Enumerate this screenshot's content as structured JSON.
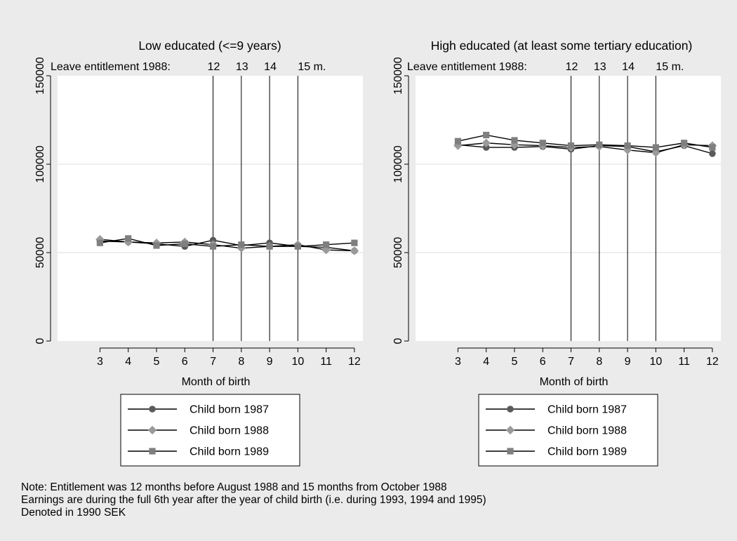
{
  "chart_data": [
    {
      "type": "line",
      "title": "Low educated (<=9 years)",
      "subtitle": "Leave entitlement 1988:",
      "vline_labels": [
        "12",
        "13",
        "14",
        "15 m."
      ],
      "vlines_x": [
        7,
        8,
        9,
        10
      ],
      "xlabel": "Month of birth",
      "ylabel": "",
      "xlim": [
        1.5,
        12.3
      ],
      "ylim": [
        0,
        150000
      ],
      "xticks": [
        3,
        4,
        5,
        6,
        7,
        8,
        9,
        10,
        11,
        12
      ],
      "yticks": [
        0,
        50000,
        100000,
        150000
      ],
      "grid": "horizontal",
      "x": [
        3,
        4,
        5,
        6,
        7,
        8,
        9,
        10,
        11,
        12
      ],
      "series": [
        {
          "name": "Child born 1987",
          "marker": "circle",
          "color": "#5a5a5a",
          "values": [
            56500,
            56000,
            55000,
            53500,
            57000,
            54000,
            55500,
            53500,
            53000,
            51000
          ]
        },
        {
          "name": "Child born 1988",
          "marker": "diamond",
          "color": "#9a9a9a",
          "values": [
            57500,
            56000,
            55500,
            56000,
            54500,
            52500,
            53500,
            54500,
            51500,
            51000
          ]
        },
        {
          "name": "Child born 1989",
          "marker": "square",
          "color": "#7f7f7f",
          "values": [
            55500,
            58000,
            54000,
            55000,
            53500,
            54500,
            53500,
            53500,
            54500,
            55500
          ]
        }
      ]
    },
    {
      "type": "line",
      "title": "High educated (at least some tertiary education)",
      "subtitle": "Leave entitlement 1988:",
      "vline_labels": [
        "12",
        "13",
        "14",
        "15 m."
      ],
      "vlines_x": [
        7,
        8,
        9,
        10
      ],
      "xlabel": "Month of birth",
      "ylabel": "",
      "xlim": [
        1.5,
        12.3
      ],
      "ylim": [
        0,
        150000
      ],
      "xticks": [
        3,
        4,
        5,
        6,
        7,
        8,
        9,
        10,
        11,
        12
      ],
      "yticks": [
        0,
        50000,
        100000,
        150000
      ],
      "grid": "horizontal",
      "x": [
        3,
        4,
        5,
        6,
        7,
        8,
        9,
        10,
        11,
        12
      ],
      "series": [
        {
          "name": "Child born 1987",
          "marker": "circle",
          "color": "#5a5a5a",
          "values": [
            111000,
            109500,
            109500,
            110000,
            108500,
            110500,
            110000,
            107000,
            110500,
            106000
          ]
        },
        {
          "name": "Child born 1988",
          "marker": "diamond",
          "color": "#9a9a9a",
          "values": [
            110500,
            112000,
            111000,
            110500,
            109500,
            110000,
            108000,
            106500,
            111000,
            110500
          ]
        },
        {
          "name": "Child born 1989",
          "marker": "square",
          "color": "#7f7f7f",
          "values": [
            113000,
            116500,
            113500,
            112000,
            110500,
            111000,
            110500,
            109500,
            112000,
            109500
          ]
        }
      ]
    }
  ],
  "notes": [
    "Note: Entitlement was 12 months before August 1988 and 15 months from October 1988",
    "Earnings are during the full 6th year after the year of child birth (i.e. during 1993, 1994 and 1995)",
    "Denoted in 1990 SEK"
  ]
}
